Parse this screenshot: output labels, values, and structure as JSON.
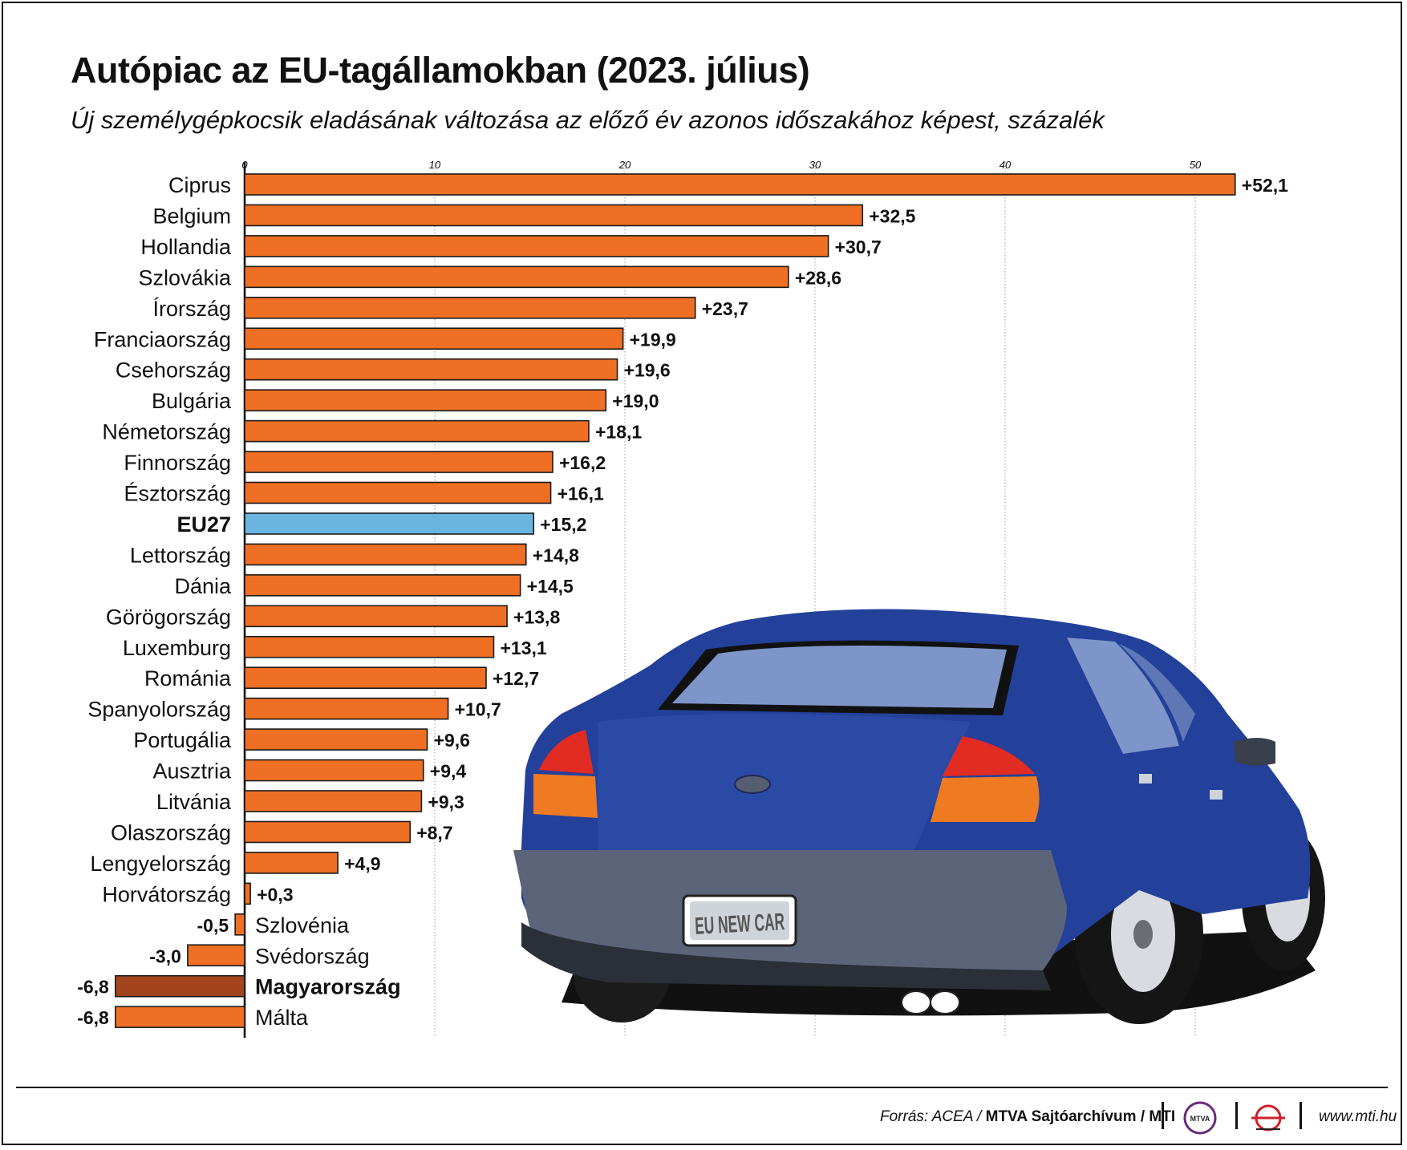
{
  "title": "Autópiac az EU-tagállamokban (2023. július)",
  "subtitle": "Új személygépkocsik eladásának változása az előző év  azonos időszakához képest, százalék",
  "colors": {
    "bar": "#ef7024",
    "eu": "#6ab4e0",
    "hungary": "#a2451f",
    "car_body": "#23409a",
    "bumper": "#5b6478"
  },
  "chart_data": {
    "type": "bar",
    "orientation": "horizontal",
    "xlim": [
      -6.8,
      52.1
    ],
    "xticks": [
      "0",
      "10",
      "20",
      "30",
      "40",
      "50"
    ],
    "xtick_values": [
      0,
      10,
      20,
      30,
      40,
      50
    ],
    "grid": true,
    "categories": [
      "Ciprus",
      "Belgium",
      "Hollandia",
      "Szlovákia",
      "Írország",
      "Franciaország",
      "Csehország",
      "Bulgária",
      "Németország",
      "Finnország",
      "Észtország",
      "EU27",
      "Lettország",
      "Dánia",
      "Görögország",
      "Luxemburg",
      "Románia",
      "Spanyolország",
      "Portugália",
      "Ausztria",
      "Litvánia",
      "Olaszország",
      "Lengyelország",
      "Horvátország",
      "Szlovénia",
      "Svédország",
      "Magyarország",
      "Málta"
    ],
    "values": [
      52.1,
      32.5,
      30.7,
      28.6,
      23.7,
      19.9,
      19.6,
      19.0,
      18.1,
      16.2,
      16.1,
      15.2,
      14.8,
      14.5,
      13.8,
      13.1,
      12.7,
      10.7,
      9.6,
      9.4,
      9.3,
      8.7,
      4.9,
      0.3,
      -0.5,
      -3.0,
      -6.8,
      -6.8
    ],
    "value_labels": [
      "+52,1",
      "+32,5",
      "+30,7",
      "+28,6",
      "+23,7",
      "+19,9",
      "+19,6",
      "+19,0",
      "+18,1",
      "+16,2",
      "+16,1",
      "+15,2",
      "+14,8",
      "+14,5",
      "+13,8",
      "+13,1",
      "+12,7",
      "+10,7",
      "+9,6",
      "+9,4",
      "+9,3",
      "+8,7",
      "+4,9",
      "+0,3",
      "-0,5",
      "-3,0",
      "-6,8",
      "-6,8"
    ],
    "highlight": {
      "EU27": "eu",
      "Magyarország": "hungary"
    },
    "bold_labels": [
      "EU27",
      "Magyarország"
    ]
  },
  "illustration": {
    "license_plate": "EU NEW CAR"
  },
  "footer": {
    "source_prefix": "Forrás: ACEA / ",
    "source_bold": "MTVA Sajtóarchívum / MTI",
    "logo_mtva": "MTVA",
    "website": "www.mti.hu"
  }
}
